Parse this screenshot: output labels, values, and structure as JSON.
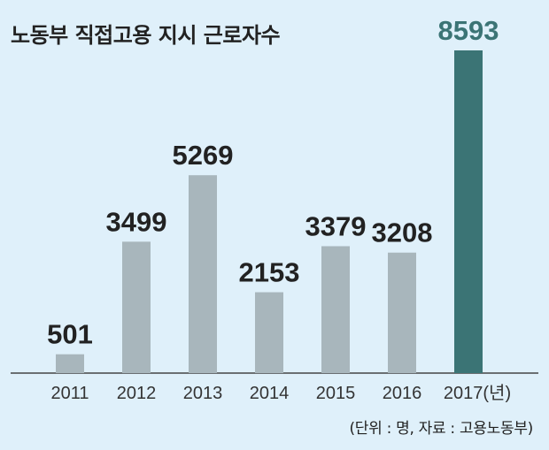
{
  "chart_data": {
    "type": "bar",
    "title": "노동부 직접고용 지시 근로자수",
    "categories": [
      "2011",
      "2012",
      "2013",
      "2014",
      "2015",
      "2016",
      "2017(년)"
    ],
    "values": [
      501,
      3499,
      5269,
      2153,
      3379,
      3208,
      8593
    ],
    "note": "(단위 : 명, 자료 : 고용노동부)",
    "colors": {
      "bar": "#a8b6bc",
      "highlight_bar": "#3b7475",
      "highlight_label": "#3b7475",
      "label": "#222222",
      "axis": "#444444"
    },
    "highlight_index": 6,
    "ylim": [
      0,
      8593
    ],
    "grid": false
  }
}
